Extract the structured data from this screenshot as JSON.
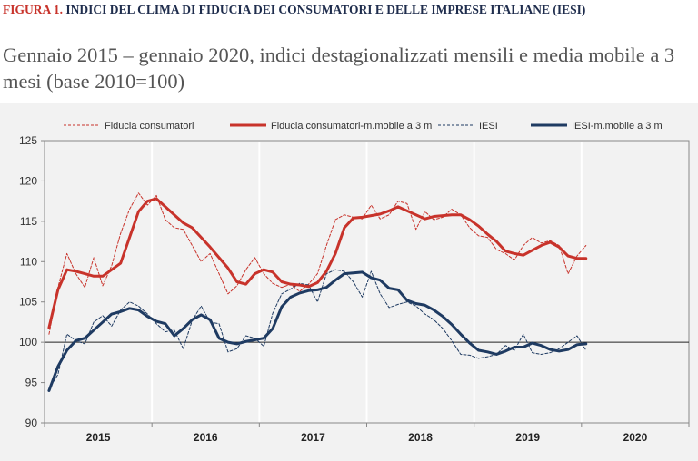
{
  "figure": {
    "number": "FIGURA 1.",
    "title": "INDICI DEL CLIMA DI FIDUCIA DEI CONSUMATORI E DELLE IMPRESE ITALIANE (IESI)",
    "subtitle": "Gennaio 2015 – gennaio 2020, indici destagionalizzati mensili e media mobile a 3 mesi (base 2010=100)"
  },
  "chart_data": {
    "type": "line",
    "x_start": "2015-01",
    "x_end": "2020-12",
    "x_tick_labels": [
      "2015",
      "2016",
      "2017",
      "2018",
      "2019",
      "2020"
    ],
    "y_ticks": [
      90,
      95,
      100,
      105,
      110,
      115,
      120,
      125
    ],
    "ylim": [
      90,
      125
    ],
    "reference_line": 100,
    "grid": "vertical year separators",
    "legend_position": "top",
    "colors": {
      "red": "#c8332b",
      "blue": "#1f3b62",
      "frame": "#888888",
      "plot_bg": "#f2f2f2"
    },
    "series": [
      {
        "name": "Fiducia consumatori",
        "style": "dashed",
        "color": "#c8332b",
        "values": [
          101,
          106.8,
          111,
          108.5,
          106.8,
          110.5,
          107,
          109.5,
          113.5,
          116.5,
          118.5,
          117,
          118.2,
          115.2,
          114.2,
          114,
          112,
          110,
          111,
          108.5,
          106,
          107,
          109,
          110.5,
          108.5,
          107.3,
          106.8,
          107.2,
          106.3,
          107.2,
          108.5,
          112,
          115.2,
          115.8,
          115.5,
          115.3,
          117,
          115.3,
          115.8,
          117.5,
          117.2,
          114,
          116.2,
          115.2,
          115.5,
          116.5,
          115.8,
          114.2,
          113.2,
          113,
          111.5,
          111,
          110.2,
          112,
          113,
          112.3,
          112.6,
          112,
          108.5,
          110.7,
          112
        ]
      },
      {
        "name": "Fiducia consumatori-m.mobile a 3 m",
        "style": "solid",
        "color": "#c8332b",
        "values": [
          101.8,
          106.5,
          109,
          108.8,
          108.5,
          108.2,
          108.2,
          109,
          109.8,
          113,
          116.2,
          117.5,
          117.8,
          116.8,
          115.8,
          114.8,
          114.2,
          113,
          111.8,
          110.5,
          109.2,
          107.5,
          107.2,
          108.5,
          109,
          108.7,
          107.5,
          107.2,
          107.1,
          106.9,
          107.4,
          108.8,
          111,
          114.2,
          115.4,
          115.5,
          115.7,
          115.9,
          116.3,
          116.8,
          116.3,
          115.8,
          115.3,
          115.6,
          115.7,
          115.8,
          115.8,
          115.2,
          114.4,
          113.4,
          112.5,
          111.3,
          111,
          110.8,
          111.4,
          112,
          112.4,
          111.8,
          110.7,
          110.4,
          110.4
        ]
      },
      {
        "name": "IESI",
        "style": "dashed",
        "color": "#1f3b62",
        "values": [
          94.2,
          96,
          101,
          100.2,
          99.8,
          102.5,
          103.3,
          102,
          104,
          105,
          104.5,
          103.5,
          102.3,
          101.3,
          101.5,
          99.2,
          102.7,
          104.5,
          102.5,
          102.3,
          98.8,
          99.2,
          100.8,
          100.5,
          99.5,
          103.6,
          106,
          106.6,
          107.3,
          107.1,
          105,
          108.5,
          109,
          108.8,
          107.5,
          105.6,
          108.8,
          106,
          104.3,
          104.7,
          105,
          104.5,
          103.5,
          102.8,
          101.7,
          100.2,
          98.5,
          98.4,
          98,
          98.2,
          98.5,
          99.6,
          99,
          101,
          98.7,
          98.5,
          98.7,
          99.2,
          100,
          100.8,
          99
        ]
      },
      {
        "name": "IESI-m.mobile a 3 m",
        "style": "solid",
        "color": "#1f3b62",
        "values": [
          94,
          97,
          99,
          100.2,
          100.5,
          101.5,
          102.5,
          103.5,
          103.8,
          104.2,
          104,
          103.2,
          102.6,
          102.3,
          100.8,
          101.7,
          102.8,
          103.4,
          102.8,
          100.5,
          100,
          99.8,
          100.1,
          100.3,
          100.5,
          101.7,
          104.4,
          105.6,
          106.1,
          106.4,
          106.5,
          106.8,
          107.7,
          108.5,
          108.6,
          108.7,
          108,
          107.7,
          106.7,
          106.5,
          105.2,
          104.8,
          104.6,
          104,
          103.2,
          102.2,
          101,
          99.9,
          99,
          98.8,
          98.5,
          98.9,
          99.4,
          99.4,
          99.9,
          99.6,
          99.1,
          98.9,
          99.1,
          99.7,
          99.8
        ]
      }
    ]
  }
}
